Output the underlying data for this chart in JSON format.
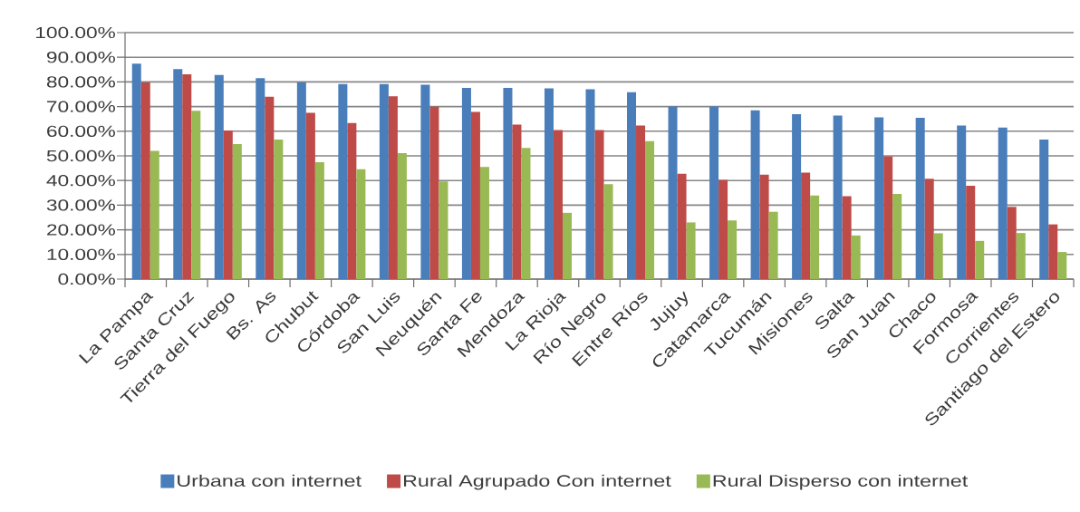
{
  "chart_data": {
    "type": "bar",
    "categories": [
      "La Pampa",
      "Santa Cruz",
      "Tierra del Fuego",
      "Bs. As",
      "Chubut",
      "Córdoba",
      "San Luis",
      "Neuquén",
      "Santa Fe",
      "Mendoza",
      "La Rioja",
      "Río Negro",
      "Entre Ríos",
      "Jujuy",
      "Catamarca",
      "Tucumán",
      "Misiones",
      "Salta",
      "San Juan",
      "Chaco",
      "Formosa",
      "Corrientes",
      "Santiago del Estero"
    ],
    "series": [
      {
        "name": "Urbana con internet",
        "color": "#4a7ebb",
        "values": [
          87.4,
          85.2,
          82.8,
          81.5,
          79.8,
          79.1,
          79.1,
          78.9,
          77.6,
          77.6,
          77.4,
          77.0,
          75.8,
          70.0,
          70.0,
          68.5,
          66.9,
          66.4,
          65.6,
          65.4,
          62.3,
          61.5,
          56.6
        ]
      },
      {
        "name": "Rural Agrupado Con internet",
        "color": "#be4b48",
        "values": [
          79.8,
          83.1,
          60.3,
          74.0,
          67.5,
          63.3,
          74.2,
          69.9,
          67.8,
          62.7,
          60.5,
          60.5,
          62.3,
          42.7,
          40.3,
          42.4,
          43.2,
          33.6,
          49.8,
          40.7,
          37.9,
          29.3,
          22.2
        ]
      },
      {
        "name": "Rural Disperso con internet",
        "color": "#98b954",
        "values": [
          52.0,
          68.3,
          54.8,
          56.6,
          47.4,
          44.6,
          51.1,
          39.6,
          45.5,
          53.2,
          26.9,
          38.5,
          56.0,
          23.0,
          23.8,
          27.3,
          33.9,
          17.7,
          34.6,
          18.6,
          15.5,
          18.7,
          11.0
        ]
      }
    ],
    "ylim": [
      0,
      100
    ],
    "yticks": [
      {
        "value": 0,
        "label": "0.00%"
      },
      {
        "value": 10,
        "label": "10.00%"
      },
      {
        "value": 20,
        "label": "20.00%"
      },
      {
        "value": 30,
        "label": "30.00%"
      },
      {
        "value": 40,
        "label": "40.00%"
      },
      {
        "value": 50,
        "label": "50.00%"
      },
      {
        "value": 60,
        "label": "60.00%"
      },
      {
        "value": 70,
        "label": "70.00%"
      },
      {
        "value": 80,
        "label": "80.00%"
      },
      {
        "value": 90,
        "label": "90.00%"
      },
      {
        "value": 100,
        "label": "100.00%"
      }
    ],
    "grid": "y",
    "legend": "bottom"
  }
}
